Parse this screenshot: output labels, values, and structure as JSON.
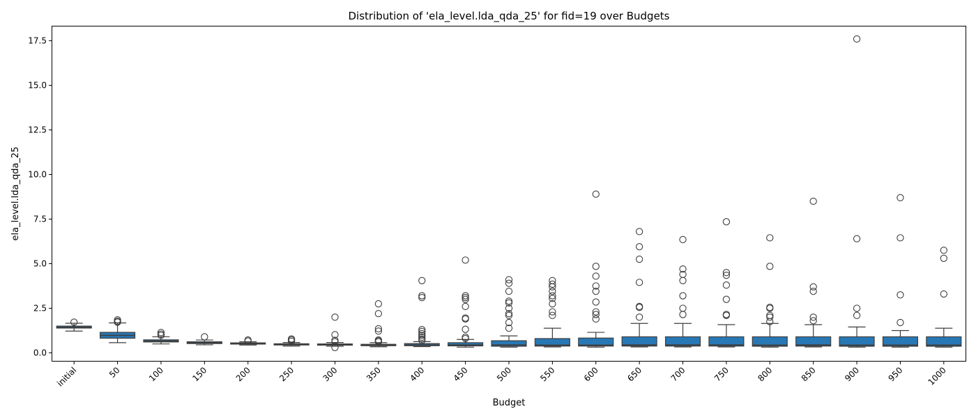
{
  "chart_data": {
    "type": "box",
    "title": "Distribution of 'ela_level.lda_qda_25' for fid=19 over Budgets",
    "xlabel": "Budget",
    "ylabel": "ela_level.lda_qda_25",
    "ylim": [
      -0.45,
      18.3
    ],
    "yticks": [
      0.0,
      2.5,
      5.0,
      7.5,
      10.0,
      12.5,
      15.0,
      17.5
    ],
    "ytick_labels": [
      "0.0",
      "2.5",
      "5.0",
      "7.5",
      "10.0",
      "12.5",
      "15.0",
      "17.5"
    ],
    "grid": false,
    "box_color": "#2878b5",
    "edge_color": "#3d3d3d",
    "categories": [
      "initial",
      "50",
      "100",
      "150",
      "200",
      "250",
      "300",
      "350",
      "400",
      "450",
      "500",
      "550",
      "600",
      "650",
      "700",
      "750",
      "800",
      "850",
      "900",
      "950",
      "1000"
    ],
    "boxes": [
      {
        "whislo": 1.22,
        "q1": 1.39,
        "med": 1.44,
        "q3": 1.5,
        "whishi": 1.66,
        "fliers": [
          1.72
        ]
      },
      {
        "whislo": 0.57,
        "q1": 0.82,
        "med": 0.98,
        "q3": 1.15,
        "whishi": 1.68,
        "fliers": [
          1.72,
          1.77,
          1.85
        ]
      },
      {
        "whislo": 0.5,
        "q1": 0.61,
        "med": 0.66,
        "q3": 0.73,
        "whishi": 0.9,
        "fliers": [
          0.98,
          1.05,
          1.14
        ]
      },
      {
        "whislo": 0.45,
        "q1": 0.52,
        "med": 0.57,
        "q3": 0.62,
        "whishi": 0.72,
        "fliers": [
          0.9
        ]
      },
      {
        "whislo": 0.44,
        "q1": 0.49,
        "med": 0.52,
        "q3": 0.56,
        "whishi": 0.62,
        "fliers": [
          0.66,
          0.72
        ]
      },
      {
        "whislo": 0.38,
        "q1": 0.44,
        "med": 0.47,
        "q3": 0.51,
        "whishi": 0.58,
        "fliers": [
          0.65,
          0.72,
          0.78
        ]
      },
      {
        "whislo": 0.37,
        "q1": 0.43,
        "med": 0.46,
        "q3": 0.5,
        "whishi": 0.58,
        "fliers": [
          0.3,
          0.62,
          0.7,
          1.02,
          2.0
        ]
      },
      {
        "whislo": 0.34,
        "q1": 0.4,
        "med": 0.43,
        "q3": 0.48,
        "whishi": 0.57,
        "fliers": [
          0.62,
          0.67,
          0.72,
          1.22,
          1.35,
          2.2,
          2.75
        ]
      },
      {
        "whislo": 0.35,
        "q1": 0.4,
        "med": 0.44,
        "q3": 0.52,
        "whishi": 0.63,
        "fliers": [
          0.7,
          0.78,
          0.88,
          0.98,
          1.08,
          1.2,
          1.3,
          3.1,
          3.2,
          4.05
        ]
      },
      {
        "whislo": 0.32,
        "q1": 0.39,
        "med": 0.44,
        "q3": 0.57,
        "whishi": 0.75,
        "fliers": [
          0.8,
          0.88,
          1.32,
          1.9,
          1.95,
          2.6,
          3.0,
          3.1,
          3.2,
          5.2
        ]
      },
      {
        "whislo": 0.32,
        "q1": 0.37,
        "med": 0.44,
        "q3": 0.68,
        "whishi": 0.95,
        "fliers": [
          1.38,
          1.7,
          2.1,
          2.2,
          2.5,
          2.8,
          2.9,
          3.45,
          3.9,
          4.1
        ]
      },
      {
        "whislo": 0.33,
        "q1": 0.38,
        "med": 0.43,
        "q3": 0.8,
        "whishi": 1.38,
        "fliers": [
          2.1,
          2.3,
          2.75,
          3.05,
          3.2,
          3.45,
          3.7,
          3.85,
          4.05
        ]
      },
      {
        "whislo": 0.32,
        "q1": 0.38,
        "med": 0.43,
        "q3": 0.83,
        "whishi": 1.15,
        "fliers": [
          1.9,
          2.15,
          2.3,
          2.85,
          3.45,
          3.75,
          4.3,
          4.85,
          8.9
        ]
      },
      {
        "whislo": 0.33,
        "q1": 0.38,
        "med": 0.44,
        "q3": 0.9,
        "whishi": 1.65,
        "fliers": [
          2.0,
          2.55,
          2.6,
          3.95,
          5.25,
          5.95,
          6.8
        ]
      },
      {
        "whislo": 0.33,
        "q1": 0.38,
        "med": 0.44,
        "q3": 0.9,
        "whishi": 1.65,
        "fliers": [
          2.15,
          2.5,
          3.2,
          4.05,
          4.4,
          4.7,
          6.35
        ]
      },
      {
        "whislo": 0.33,
        "q1": 0.38,
        "med": 0.44,
        "q3": 0.9,
        "whishi": 1.58,
        "fliers": [
          2.1,
          2.15,
          3.0,
          3.8,
          4.35,
          4.5,
          7.35
        ]
      },
      {
        "whislo": 0.32,
        "q1": 0.37,
        "med": 0.43,
        "q3": 0.9,
        "whishi": 1.65,
        "fliers": [
          1.75,
          2.0,
          2.1,
          2.5,
          2.55,
          4.85,
          6.45
        ]
      },
      {
        "whislo": 0.33,
        "q1": 0.38,
        "med": 0.44,
        "q3": 0.9,
        "whishi": 1.58,
        "fliers": [
          1.8,
          2.0,
          3.45,
          3.7,
          8.5
        ]
      },
      {
        "whislo": 0.32,
        "q1": 0.37,
        "med": 0.43,
        "q3": 0.9,
        "whishi": 1.45,
        "fliers": [
          2.1,
          2.5,
          6.4,
          17.6
        ]
      },
      {
        "whislo": 0.32,
        "q1": 0.37,
        "med": 0.43,
        "q3": 0.9,
        "whishi": 1.25,
        "fliers": [
          1.7,
          3.25,
          6.45,
          8.7
        ]
      },
      {
        "whislo": 0.32,
        "q1": 0.37,
        "med": 0.43,
        "q3": 0.9,
        "whishi": 1.38,
        "fliers": [
          3.3,
          5.3,
          5.75
        ]
      }
    ]
  }
}
